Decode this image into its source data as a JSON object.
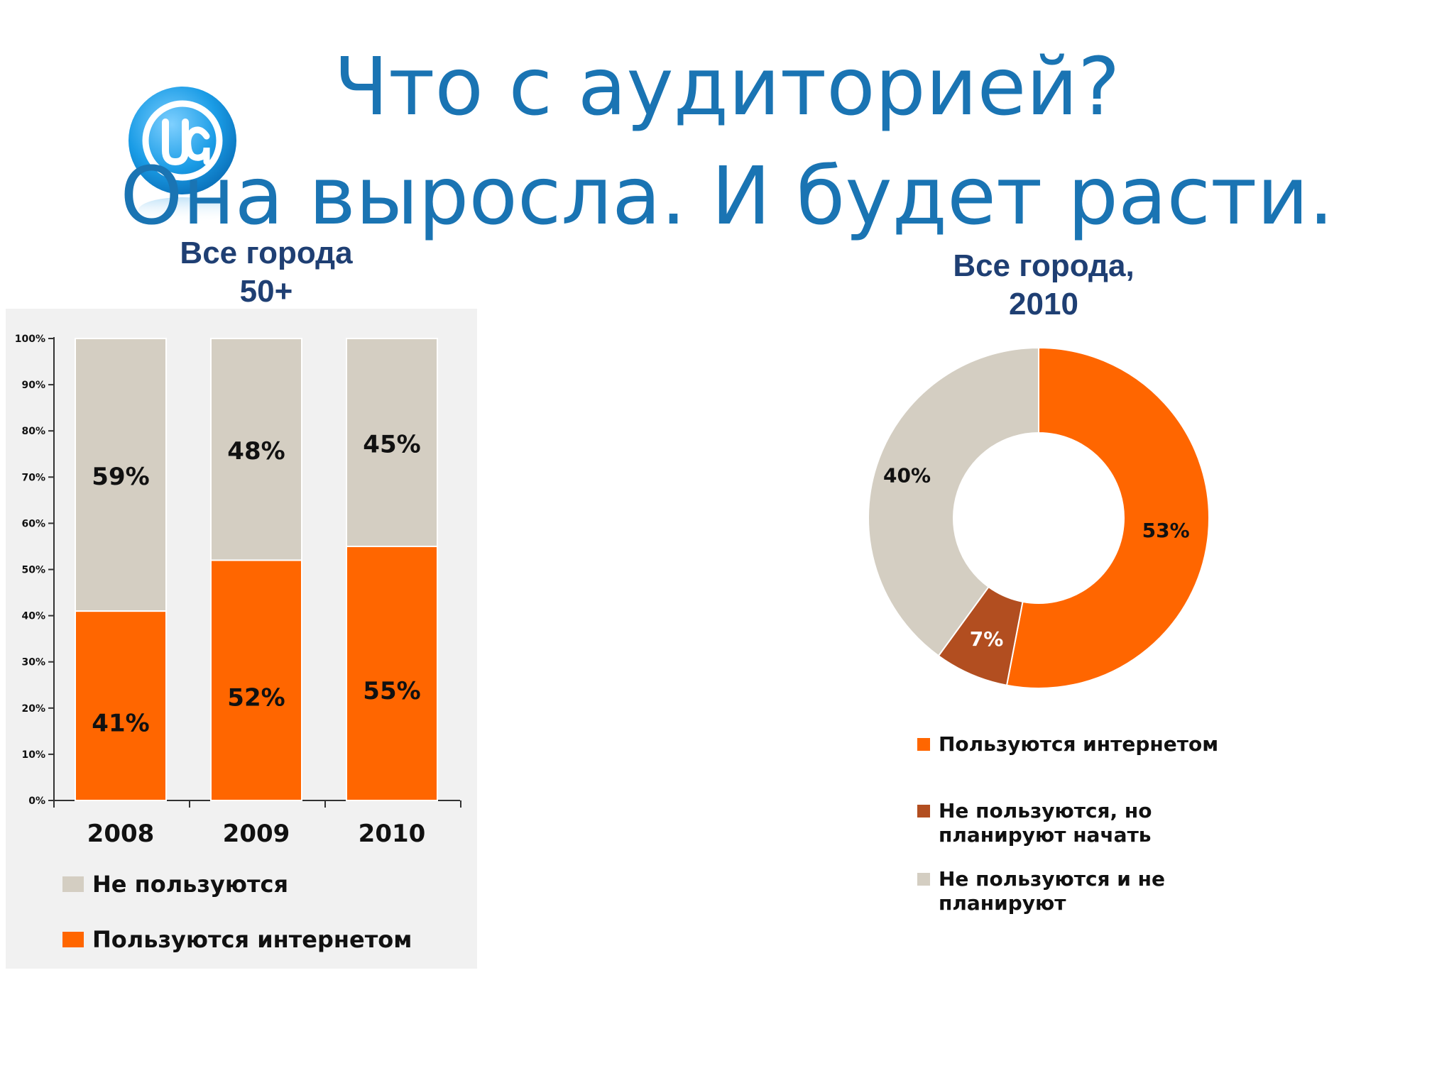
{
  "title": {
    "line1": "Что с аудиторией?",
    "line2": "Она выросла. И будет расти."
  },
  "logo": {
    "icon": "ua-at-logo-icon",
    "text": "UA"
  },
  "colors": {
    "title": "#1a74b3",
    "caption": "#1f3f73",
    "orange": "#ff6600",
    "gray": "#d4cec2",
    "brown": "#b24e20"
  },
  "chart_data": [
    {
      "type": "bar",
      "stacked": true,
      "title": "Все города 50+",
      "caption_lines": [
        "Все города",
        "50+"
      ],
      "categories": [
        "2008",
        "2009",
        "2010"
      ],
      "series": [
        {
          "name": "Пользуются интернетом",
          "values": [
            41,
            52,
            55
          ],
          "labels": [
            "41%",
            "52%",
            "55%"
          ],
          "color": "#ff6600"
        },
        {
          "name": "Не пользуются",
          "values": [
            59,
            48,
            45
          ],
          "labels": [
            "59%",
            "48%",
            "45%"
          ],
          "color": "#d4cec2"
        }
      ],
      "y_ticks": [
        "0%",
        "10%",
        "20%",
        "30%",
        "40%",
        "50%",
        "60%",
        "70%",
        "80%",
        "90%",
        "100%"
      ],
      "ylim": [
        0,
        100
      ],
      "grid": false,
      "legend_position": "bottom",
      "legend": [
        {
          "label": "Не пользуются",
          "color": "#d4cec2"
        },
        {
          "label": "Пользуются интернетом",
          "color": "#ff6600"
        }
      ]
    },
    {
      "type": "pie",
      "donut": true,
      "title": "Все города, 2010",
      "caption_lines": [
        "Все города,",
        "2010"
      ],
      "slices": [
        {
          "name": "Пользуются интернетом",
          "value": 53,
          "label": "53%",
          "color": "#ff6600"
        },
        {
          "name": "Не пользуются, но планируют начать",
          "value": 7,
          "label": "7%",
          "color": "#b24e20"
        },
        {
          "name": "Не пользуются и не планируют",
          "value": 40,
          "label": "40%",
          "color": "#d4cec2"
        }
      ],
      "legend_position": "bottom",
      "legend": [
        {
          "label": "Пользуются интернетом",
          "color": "#ff6600"
        },
        {
          "label": "Не пользуются, но планируют начать",
          "color": "#b24e20"
        },
        {
          "label": "Не пользуются и не планируют",
          "color": "#d4cec2"
        }
      ]
    }
  ]
}
